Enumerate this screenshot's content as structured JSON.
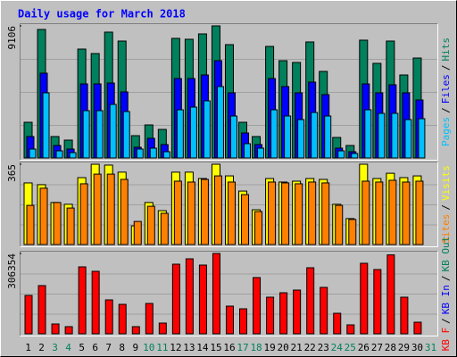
{
  "title": "Daily usage for March 2018",
  "categories": [
    1,
    2,
    3,
    4,
    5,
    6,
    7,
    8,
    9,
    10,
    11,
    12,
    13,
    14,
    15,
    16,
    17,
    18,
    19,
    20,
    21,
    22,
    23,
    24,
    25,
    26,
    27,
    28,
    29,
    30,
    31
  ],
  "category_colors": [
    "#000000",
    "#000000",
    "#00805c",
    "#00805c",
    "#000000",
    "#000000",
    "#000000",
    "#000000",
    "#000000",
    "#00805c",
    "#00805c",
    "#000000",
    "#000000",
    "#000000",
    "#000000",
    "#000000",
    "#00805c",
    "#00805c",
    "#000000",
    "#000000",
    "#000000",
    "#000000",
    "#000000",
    "#00805c",
    "#00805c",
    "#000000",
    "#000000",
    "#000000",
    "#000000",
    "#000000",
    "#00805c"
  ],
  "chart_data": [
    {
      "type": "bar",
      "separator": "/",
      "ylim": [
        0,
        9106
      ],
      "yticks": [
        9106
      ],
      "series": [
        {
          "name": "Pages",
          "color": "#00c0ff",
          "values": [
            615,
            4491,
            492,
            369,
            3261,
            3261,
            3692,
            3200,
            615,
            677,
            431,
            3322,
            3507,
            3938,
            4922,
            2892,
            984,
            677,
            3322,
            2892,
            2646,
            3138,
            2892,
            492,
            308,
            3322,
            3076,
            3076,
            2646,
            2707,
            0
          ]
        },
        {
          "name": "Files",
          "color": "#0000ff",
          "values": [
            1477,
            5845,
            861,
            615,
            5107,
            5107,
            5168,
            4553,
            738,
            1354,
            923,
            5476,
            5476,
            5722,
            6707,
            4491,
            1723,
            923,
            5476,
            4922,
            4491,
            5230,
            4368,
            677,
            431,
            5107,
            4491,
            5045,
            4491,
            3999,
            0
          ]
        },
        {
          "name": "Hits",
          "color": "#00805c",
          "values": [
            2461,
            8860,
            1477,
            1231,
            7507,
            7199,
            8676,
            8060,
            1538,
            2277,
            1969,
            8245,
            8184,
            8553,
            9106,
            7814,
            2461,
            1477,
            7691,
            6707,
            6584,
            7999,
            5968,
            1415,
            861,
            8122,
            6522,
            8060,
            5722,
            6891,
            0
          ]
        }
      ]
    },
    {
      "type": "bar",
      "separator": "/",
      "ylim": [
        0,
        365
      ],
      "yticks": [
        365
      ],
      "series": [
        {
          "name": "Sites",
          "color": "#ff8000",
          "values": [
            178,
            256,
            191,
            166,
            276,
            320,
            320,
            296,
            105,
            174,
            142,
            288,
            284,
            296,
            312,
            284,
            227,
            150,
            284,
            280,
            276,
            284,
            280,
            178,
            114,
            288,
            284,
            292,
            284,
            288,
            0
          ]
        },
        {
          "name": "Visits",
          "color": "#ffff00",
          "values": [
            280,
            272,
            191,
            183,
            304,
            365,
            361,
            329,
            85,
            191,
            154,
            329,
            329,
            300,
            365,
            312,
            243,
            158,
            300,
            284,
            288,
            300,
            296,
            183,
            118,
            365,
            300,
            324,
            304,
            312,
            0
          ]
        }
      ]
    },
    {
      "type": "bar",
      "separator": "/",
      "ylim": [
        0,
        306354
      ],
      "yticks": [
        306354
      ],
      "series": [
        {
          "name": "KB F",
          "color": "#ff0000",
          "values": [
            146372,
            183816,
            37444,
            27232,
            255300,
            238280,
            129352,
            112332,
            27232,
            115736,
            40848,
            265512,
            285936,
            262108,
            306354,
            105524,
            95312,
            214452,
            139564,
            156584,
            166796,
            251896,
            177008,
            78292,
            34040,
            268916,
            245088,
            301000,
            139564,
            44252,
            0
          ]
        },
        {
          "name": "KB In",
          "color": "#0000ff",
          "values": [
            0,
            0,
            0,
            0,
            0,
            0,
            0,
            0,
            0,
            0,
            0,
            0,
            0,
            0,
            0,
            0,
            0,
            0,
            0,
            0,
            0,
            0,
            0,
            0,
            0,
            0,
            0,
            0,
            0,
            0,
            0
          ]
        },
        {
          "name": "KB Out",
          "color": "#00805c",
          "values": [
            0,
            0,
            0,
            0,
            0,
            0,
            0,
            0,
            0,
            0,
            0,
            0,
            0,
            0,
            0,
            0,
            0,
            0,
            0,
            0,
            0,
            0,
            0,
            0,
            0,
            0,
            0,
            0,
            0,
            0,
            0
          ]
        }
      ]
    }
  ]
}
